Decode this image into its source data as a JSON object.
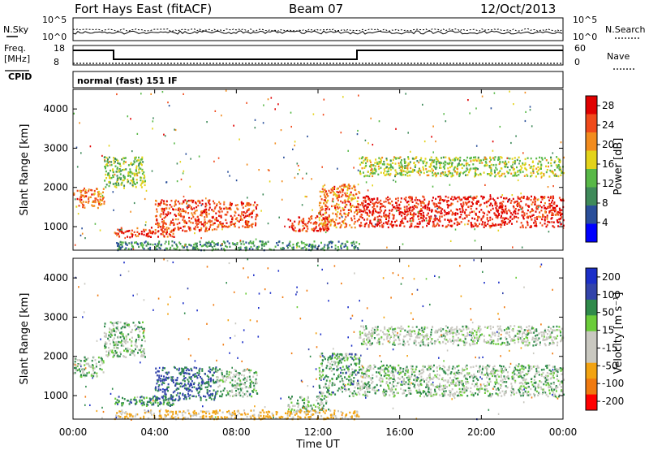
{
  "header": {
    "station": "Fort Hays East (fitACF)",
    "beam": "Beam 07",
    "date": "12/Oct/2013"
  },
  "noise_panel": {
    "left_label": "N.Sky",
    "right_label": "N.Search",
    "left_ticks": [
      "10^5",
      "10^0"
    ],
    "right_ticks": [
      "10^5",
      "10^0"
    ]
  },
  "freq_panel": {
    "left_label_1": "Freq.",
    "left_label_2": "[MHz]",
    "right_label": "Nave",
    "left_ticks": [
      "18",
      "8"
    ],
    "right_ticks": [
      "60",
      "0"
    ]
  },
  "cpid": {
    "label": "CPID",
    "value": "normal (fast) 151 IF"
  },
  "colors": {
    "power_scale": [
      "#0000ff",
      "#2a4f9a",
      "#3f8a5a",
      "#58b847",
      "#e3d31a",
      "#f28c1e",
      "#f04a1b",
      "#e00000"
    ],
    "velocity_scale": [
      "#ff0000",
      "#f07a10",
      "#f2a312",
      "#c9c8c0",
      "#c9c8c0",
      "#6bcc3a",
      "#2f8a4a",
      "#3344aa",
      "#1c2fc8"
    ]
  },
  "chart_data": [
    {
      "type": "heatmap",
      "title": "Power",
      "xlabel": "Time UT",
      "ylabel": "Slant Range [km]",
      "x_ticks": [
        "00:00",
        "04:00",
        "08:00",
        "12:00",
        "16:00",
        "20:00",
        "00:00"
      ],
      "xlim_hours": [
        0,
        24
      ],
      "y_ticks": [
        1000,
        2000,
        3000,
        4000
      ],
      "ylim": [
        400,
        4500
      ],
      "colorbar": {
        "label": "Power [dB]",
        "ticks": [
          4,
          8,
          12,
          16,
          20,
          24,
          28
        ],
        "range": [
          0,
          30
        ]
      },
      "features": [
        {
          "start": "00:00",
          "end": "01:30",
          "range_km": [
            1500,
            2000
          ],
          "value": 22
        },
        {
          "start": "01:30",
          "end": "03:30",
          "range_km": [
            2000,
            2800
          ],
          "value": 14
        },
        {
          "start": "02:00",
          "end": "05:00",
          "range_km": [
            750,
            1000
          ],
          "value": 26
        },
        {
          "start": "04:00",
          "end": "07:00",
          "range_km": [
            900,
            1700
          ],
          "value": 25
        },
        {
          "start": "07:00",
          "end": "09:00",
          "range_km": [
            1000,
            1650
          ],
          "value": 24
        },
        {
          "start": "10:30",
          "end": "12:30",
          "range_km": [
            900,
            1300
          ],
          "value": 26
        },
        {
          "start": "12:00",
          "end": "14:00",
          "range_km": [
            1000,
            2100
          ],
          "value": 22
        },
        {
          "start": "14:00",
          "end": "24:00",
          "range_km": [
            1000,
            1800
          ],
          "value": 27
        },
        {
          "start": "14:00",
          "end": "24:00",
          "range_km": [
            2300,
            2800
          ],
          "value": 15
        },
        {
          "start": "02:00",
          "end": "14:00",
          "range_km": [
            420,
            650
          ],
          "value": 10
        }
      ]
    },
    {
      "type": "heatmap",
      "title": "Velocity",
      "xlabel": "Time UT",
      "ylabel": "Slant Range [km]",
      "x_ticks": [
        "00:00",
        "04:00",
        "08:00",
        "12:00",
        "16:00",
        "20:00",
        "00:00"
      ],
      "xlim_hours": [
        0,
        24
      ],
      "y_ticks": [
        1000,
        2000,
        3000,
        4000
      ],
      "ylim": [
        400,
        4500
      ],
      "colorbar": {
        "label": "Velocity [m s⁻¹]",
        "ticks": [
          200,
          100,
          50,
          15,
          -15,
          -50,
          -100,
          -200
        ]
      },
      "features": [
        {
          "start": "00:00",
          "end": "01:30",
          "range_km": [
            1500,
            2000
          ],
          "value": 0
        },
        {
          "start": "01:30",
          "end": "03:30",
          "range_km": [
            2000,
            2900
          ],
          "value": 0
        },
        {
          "start": "02:00",
          "end": "05:00",
          "range_km": [
            750,
            1000
          ],
          "value": 40
        },
        {
          "start": "04:00",
          "end": "07:00",
          "range_km": [
            900,
            1750
          ],
          "value": 60
        },
        {
          "start": "07:00",
          "end": "09:00",
          "range_km": [
            1000,
            1700
          ],
          "value": 5
        },
        {
          "start": "10:30",
          "end": "12:30",
          "range_km": [
            600,
            1000
          ],
          "value": 0
        },
        {
          "start": "12:00",
          "end": "14:00",
          "range_km": [
            1000,
            2100
          ],
          "value": 20
        },
        {
          "start": "14:00",
          "end": "24:00",
          "range_km": [
            1000,
            1800
          ],
          "value": 0
        },
        {
          "start": "14:00",
          "end": "24:00",
          "range_km": [
            2300,
            2800
          ],
          "value": -10
        },
        {
          "start": "02:00",
          "end": "14:00",
          "range_km": [
            420,
            650
          ],
          "value": -60
        }
      ]
    }
  ]
}
